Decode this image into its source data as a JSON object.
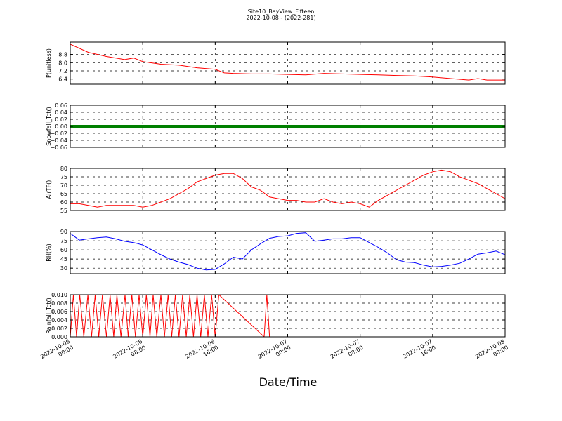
{
  "figure": {
    "title_line1": "Site10_BayView_Fifteen",
    "title_line2": "2022-10-08 - (2022-281)",
    "xlabel": "Date/Time",
    "x_ticks": [
      {
        "line1": "2022-10-06",
        "line2": "00:00"
      },
      {
        "line1": "2022-10-06",
        "line2": "08:00"
      },
      {
        "line1": "2022-10-06",
        "line2": "16:00"
      },
      {
        "line1": "2022-10-07",
        "line2": "00:00"
      },
      {
        "line1": "2022-10-07",
        "line2": "08:00"
      },
      {
        "line1": "2022-10-07",
        "line2": "16:00"
      },
      {
        "line1": "2022-10-08",
        "line2": "00:00"
      }
    ]
  },
  "chart_data": [
    {
      "type": "line",
      "ylabel": "P(unitless)",
      "color": "#ff0000",
      "ylim": [
        5.9,
        10.0
      ],
      "yticks": [
        6.4,
        7.2,
        8.0,
        8.8
      ],
      "ytick_labels": [
        "6.4",
        "7.2",
        "8.0",
        "8.8"
      ],
      "x_hours": [
        0,
        2,
        4,
        6,
        7,
        8,
        10,
        12,
        14,
        16,
        17,
        18,
        20,
        22,
        24,
        26,
        28,
        30,
        32,
        34,
        36,
        38,
        40,
        42,
        44,
        45,
        46,
        48
      ],
      "values": [
        9.8,
        9.0,
        8.6,
        8.3,
        8.45,
        8.1,
        7.85,
        7.75,
        7.5,
        7.35,
        7.0,
        6.95,
        6.9,
        6.9,
        6.85,
        6.8,
        6.95,
        6.9,
        6.85,
        6.8,
        6.75,
        6.7,
        6.6,
        6.45,
        6.3,
        6.45,
        6.3,
        6.3
      ]
    },
    {
      "type": "line",
      "ylabel": "Snowfall_Tot()",
      "color": "#008000",
      "ylim": [
        -0.06,
        0.06
      ],
      "yticks": [
        -0.06,
        -0.04,
        -0.02,
        0.0,
        0.02,
        0.04,
        0.06
      ],
      "ytick_labels": [
        "−0.06",
        "−0.04",
        "−0.02",
        "0.00",
        "0.02",
        "0.04",
        "0.06"
      ],
      "x_hours": [
        0,
        48
      ],
      "values": [
        0.0,
        0.0
      ]
    },
    {
      "type": "line",
      "ylabel": "AirTF()",
      "color": "#ff0000",
      "ylim": [
        55,
        80
      ],
      "yticks": [
        55,
        60,
        65,
        70,
        75,
        80
      ],
      "ytick_labels": [
        "55",
        "60",
        "65",
        "70",
        "75",
        "80"
      ],
      "x_hours": [
        0,
        1,
        2,
        3,
        4,
        5,
        6,
        7,
        8,
        9,
        10,
        11,
        12,
        13,
        14,
        15,
        16,
        17,
        18,
        19,
        20,
        21,
        22,
        23,
        24,
        25,
        26,
        27,
        28,
        29,
        30,
        31,
        32,
        33,
        34,
        35,
        36,
        37,
        38,
        39,
        40,
        41,
        42,
        43,
        44,
        45,
        46,
        47,
        48
      ],
      "values": [
        59,
        59,
        58,
        57,
        58,
        58,
        58,
        58,
        57,
        58,
        60,
        62,
        65,
        68,
        72,
        74,
        76,
        77,
        77,
        74,
        69,
        67,
        63,
        62,
        61,
        61,
        60,
        60,
        62,
        60,
        59,
        60,
        59,
        57,
        61,
        64,
        67,
        70,
        73,
        76,
        78,
        79,
        78,
        75,
        73,
        71,
        68,
        65,
        62
      ]
    },
    {
      "type": "line",
      "ylabel": "RH(%)",
      "color": "#0000ff",
      "ylim": [
        21,
        90
      ],
      "yticks": [
        30,
        45,
        60,
        75,
        90
      ],
      "ytick_labels": [
        "30",
        "45",
        "60",
        "75",
        "90"
      ],
      "x_hours": [
        0,
        1,
        2,
        3,
        4,
        5,
        6,
        7,
        8,
        9,
        10,
        11,
        12,
        13,
        14,
        15,
        16,
        17,
        18,
        19,
        20,
        21,
        22,
        23,
        24,
        25,
        26,
        27,
        28,
        29,
        30,
        31,
        32,
        33,
        34,
        35,
        36,
        37,
        38,
        39,
        40,
        41,
        42,
        43,
        44,
        45,
        46,
        47,
        48
      ],
      "values": [
        87,
        76,
        78,
        80,
        81,
        78,
        74,
        72,
        68,
        60,
        52,
        45,
        40,
        36,
        30,
        27,
        28,
        37,
        48,
        45,
        60,
        70,
        79,
        82,
        83,
        87,
        88,
        74,
        76,
        78,
        78,
        80,
        80,
        72,
        64,
        55,
        44,
        40,
        39,
        35,
        32,
        33,
        35,
        38,
        45,
        53,
        55,
        58,
        52
      ]
    },
    {
      "type": "line",
      "ylabel": "Rainfall_Tot()",
      "color": "#ff0000",
      "ylim": [
        0.0,
        0.01
      ],
      "yticks": [
        0.0,
        0.002,
        0.004,
        0.006,
        0.008,
        0.01
      ],
      "ytick_labels": [
        "0.000",
        "0.002",
        "0.004",
        "0.006",
        "0.008",
        "0.010"
      ],
      "x_hours": [
        0,
        0.35,
        0.7,
        1.05,
        1.5,
        1.95,
        2.35,
        2.75,
        3.15,
        3.55,
        4.0,
        4.4,
        4.8,
        5.15,
        5.6,
        6.05,
        6.4,
        6.8,
        7.2,
        7.6,
        8.0,
        8.4,
        8.8,
        9.15,
        9.55,
        10.0,
        10.4,
        10.8,
        11.2,
        11.6,
        12.0,
        12.4,
        12.8,
        13.2,
        13.6,
        14.0,
        14.4,
        14.8,
        15.2,
        15.6,
        16.0,
        16.4,
        21.4,
        21.7,
        22.0,
        48.0
      ],
      "values": [
        0,
        0.01,
        0,
        0.01,
        0,
        0.01,
        0,
        0.01,
        0,
        0.01,
        0,
        0.01,
        0,
        0.01,
        0,
        0.01,
        0,
        0.01,
        0,
        0.01,
        0,
        0.01,
        0,
        0.01,
        0,
        0.01,
        0,
        0.01,
        0,
        0.01,
        0,
        0.01,
        0,
        0.01,
        0,
        0.01,
        0,
        0.01,
        0,
        0.01,
        0,
        0.01,
        0,
        0.01,
        0,
        0
      ]
    }
  ]
}
